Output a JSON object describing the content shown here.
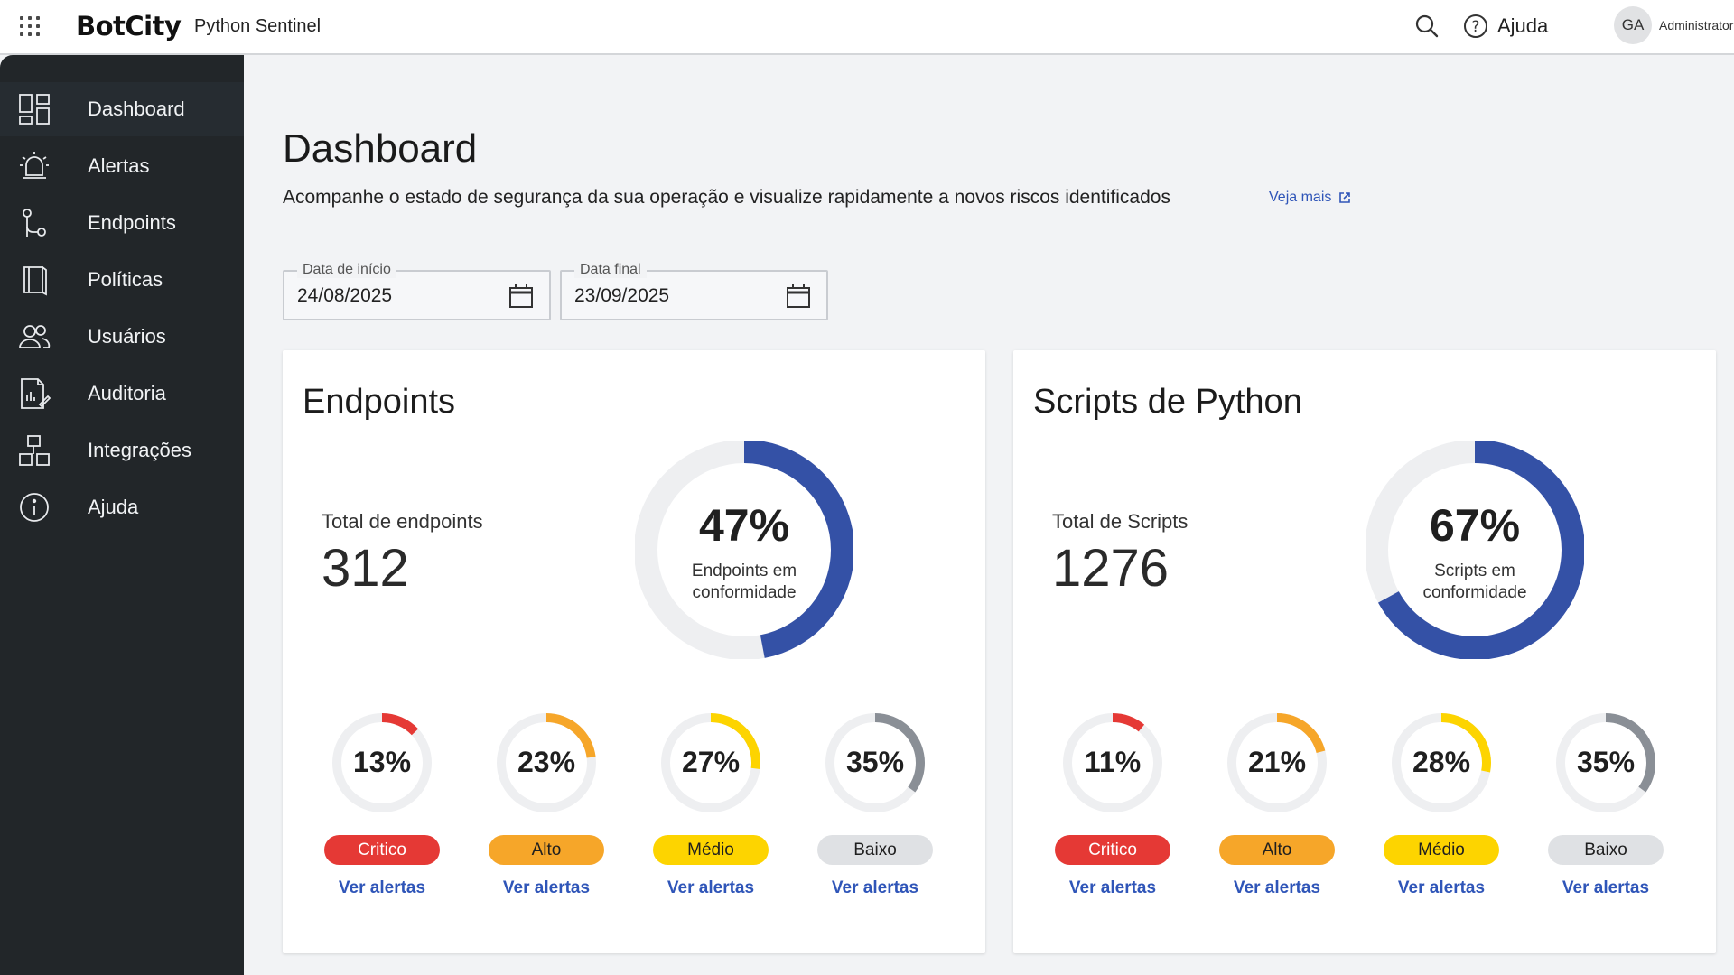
{
  "app": {
    "brand": "BotCity",
    "product": "Python Sentinel"
  },
  "header": {
    "help_label": "Ajuda",
    "avatar_initials": "GA",
    "user_role": "Administrator"
  },
  "sidebar": {
    "items": [
      {
        "label": "Dashboard",
        "icon": "dashboard-icon",
        "active": true
      },
      {
        "label": "Alertas",
        "icon": "alarm-bell-icon",
        "active": false
      },
      {
        "label": "Endpoints",
        "icon": "endpoint-icon",
        "active": false
      },
      {
        "label": "Políticas",
        "icon": "policy-book-icon",
        "active": false
      },
      {
        "label": "Usuários",
        "icon": "users-icon",
        "active": false
      },
      {
        "label": "Auditoria",
        "icon": "audit-report-icon",
        "active": false
      },
      {
        "label": "Integrações",
        "icon": "integrations-icon",
        "active": false
      },
      {
        "label": "Ajuda",
        "icon": "info-icon",
        "active": false
      }
    ]
  },
  "main": {
    "title": "Dashboard",
    "subtitle": "Acompanhe o estado de segurança da sua operação e visualize rapidamente a novos riscos identificados",
    "see_more": "Veja mais",
    "start_date": {
      "label": "Data de início",
      "value": "24/08/2025"
    },
    "end_date": {
      "label": "Data final",
      "value": "23/09/2025"
    }
  },
  "colors": {
    "accent": "#3451a6",
    "critico": "#e53935",
    "alto": "#f6a629",
    "medio": "#fdd400",
    "baixo": "#dfe1e4",
    "baixo_arc": "#8a8f96",
    "track": "#eeeff1"
  },
  "cards": [
    {
      "title": "Endpoints",
      "total_label": "Total de endpoints",
      "total_value": "312",
      "compliance_pct": "47%",
      "compliance_value": 47,
      "compliance_caption_1": "Endpoints em",
      "compliance_caption_2": "conformidade",
      "severities": [
        {
          "pct": "13%",
          "value": 13,
          "label": "Critico",
          "link": "Ver alertas"
        },
        {
          "pct": "23%",
          "value": 23,
          "label": "Alto",
          "link": "Ver alertas"
        },
        {
          "pct": "27%",
          "value": 27,
          "label": "Médio",
          "link": "Ver alertas"
        },
        {
          "pct": "35%",
          "value": 35,
          "label": "Baixo",
          "link": "Ver alertas"
        }
      ]
    },
    {
      "title": "Scripts de Python",
      "total_label": "Total de Scripts",
      "total_value": "1276",
      "compliance_pct": "67%",
      "compliance_value": 67,
      "compliance_caption_1": "Scripts em",
      "compliance_caption_2": "conformidade",
      "severities": [
        {
          "pct": "11%",
          "value": 11,
          "label": "Critico",
          "link": "Ver alertas"
        },
        {
          "pct": "21%",
          "value": 21,
          "label": "Alto",
          "link": "Ver alertas"
        },
        {
          "pct": "28%",
          "value": 28,
          "label": "Médio",
          "link": "Ver alertas"
        },
        {
          "pct": "35%",
          "value": 35,
          "label": "Baixo",
          "link": "Ver alertas"
        }
      ]
    }
  ]
}
